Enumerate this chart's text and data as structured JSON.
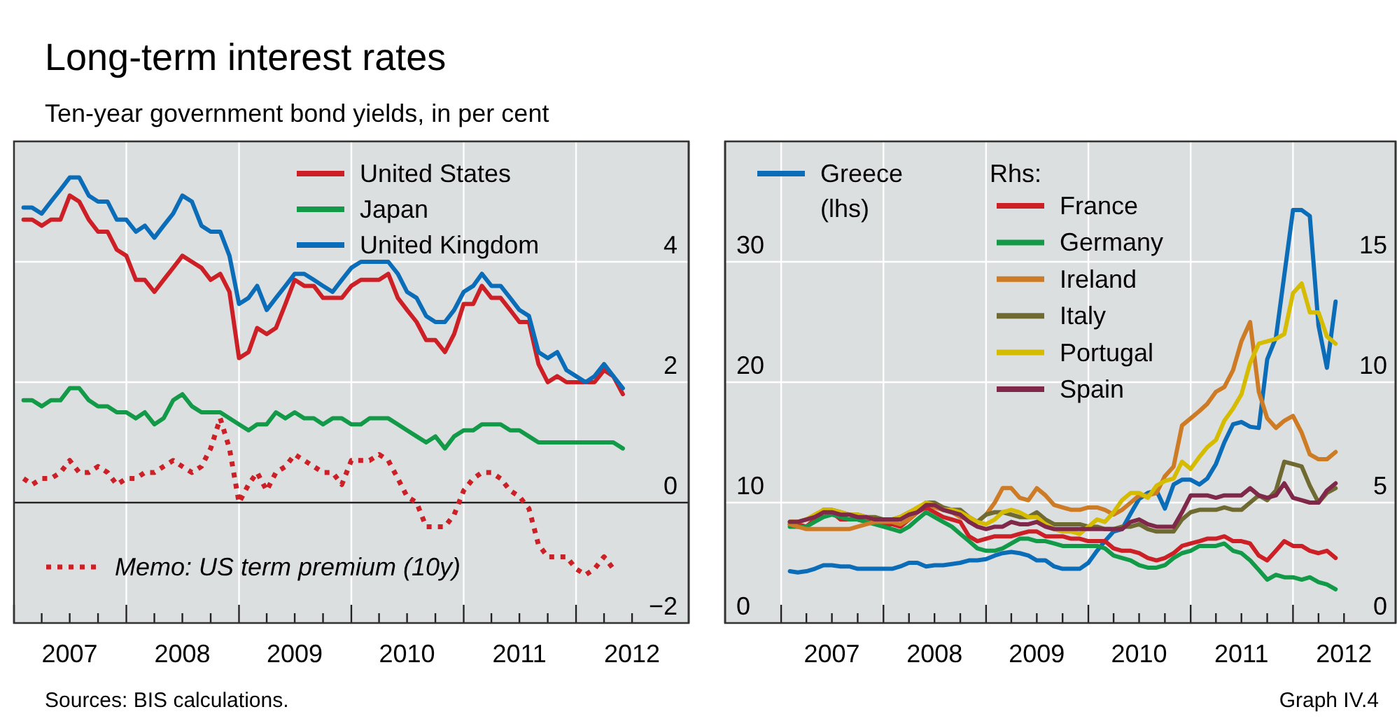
{
  "chart_data": [
    {
      "type": "line",
      "title": "Long-term interest rates",
      "subtitle": "Ten-year government bond yields, in per cent",
      "annotations": [
        "Sources: BIS calculations."
      ],
      "x": [
        "2007-02",
        "2007-03",
        "2007-04",
        "2007-05",
        "2007-06",
        "2007-07",
        "2007-08",
        "2007-09",
        "2007-10",
        "2007-11",
        "2007-12",
        "2008-01",
        "2008-02",
        "2008-03",
        "2008-04",
        "2008-05",
        "2008-06",
        "2008-07",
        "2008-08",
        "2008-09",
        "2008-10",
        "2008-11",
        "2008-12",
        "2009-01",
        "2009-02",
        "2009-03",
        "2009-04",
        "2009-05",
        "2009-06",
        "2009-07",
        "2009-08",
        "2009-09",
        "2009-10",
        "2009-11",
        "2009-12",
        "2010-01",
        "2010-02",
        "2010-03",
        "2010-04",
        "2010-05",
        "2010-06",
        "2010-07",
        "2010-08",
        "2010-09",
        "2010-10",
        "2010-11",
        "2010-12",
        "2011-01",
        "2011-02",
        "2011-03",
        "2011-04",
        "2011-05",
        "2011-06",
        "2011-07",
        "2011-08",
        "2011-09",
        "2011-10",
        "2011-11",
        "2011-12",
        "2012-01",
        "2012-02",
        "2012-03",
        "2012-04",
        "2012-05",
        "2012-06"
      ],
      "xlim": [
        "2007-01-01",
        "2013-01-01"
      ],
      "xticks": [
        {
          "value": "2007-01-01",
          "label": null
        },
        {
          "value": "2007-04-01",
          "label": null
        },
        {
          "value": "2007-07-01",
          "label": "2007"
        },
        {
          "value": "2007-10-01",
          "label": null
        },
        {
          "value": "2008-01-01",
          "label": null
        },
        {
          "value": "2008-04-01",
          "label": null
        },
        {
          "value": "2008-07-01",
          "label": "2008"
        },
        {
          "value": "2008-10-01",
          "label": null
        },
        {
          "value": "2009-01-01",
          "label": null
        },
        {
          "value": "2009-04-01",
          "label": null
        },
        {
          "value": "2009-07-01",
          "label": "2009"
        },
        {
          "value": "2009-10-01",
          "label": null
        },
        {
          "value": "2010-01-01",
          "label": null
        },
        {
          "value": "2010-04-01",
          "label": null
        },
        {
          "value": "2010-07-01",
          "label": "2010"
        },
        {
          "value": "2010-10-01",
          "label": null
        },
        {
          "value": "2011-01-01",
          "label": null
        },
        {
          "value": "2011-04-01",
          "label": null
        },
        {
          "value": "2011-07-01",
          "label": "2011"
        },
        {
          "value": "2011-10-01",
          "label": null
        },
        {
          "value": "2012-01-01",
          "label": null
        },
        {
          "value": "2012-04-01",
          "label": null
        },
        {
          "value": "2012-07-01",
          "label": "2012"
        }
      ],
      "ylim": [
        -2,
        6
      ],
      "yticks": [
        {
          "value": -2,
          "label": "−2"
        },
        0,
        2,
        4
      ],
      "grid": true,
      "legend": "top",
      "series": [
        {
          "name": "United States",
          "color": "#cc1f26",
          "values": [
            4.7,
            4.7,
            4.6,
            4.7,
            4.7,
            5.1,
            5.0,
            4.7,
            4.5,
            4.5,
            4.2,
            4.1,
            3.7,
            3.7,
            3.5,
            3.7,
            3.9,
            4.1,
            4.0,
            3.9,
            3.7,
            3.8,
            3.5,
            2.4,
            2.5,
            2.9,
            2.8,
            2.9,
            3.3,
            3.7,
            3.6,
            3.6,
            3.4,
            3.4,
            3.4,
            3.6,
            3.7,
            3.7,
            3.7,
            3.8,
            3.4,
            3.2,
            3.0,
            2.7,
            2.7,
            2.5,
            2.8,
            3.3,
            3.3,
            3.6,
            3.4,
            3.4,
            3.2,
            3.0,
            3.0,
            2.3,
            2.0,
            2.1,
            2.0,
            2.0,
            2.0,
            2.0,
            2.2,
            2.1,
            1.8
          ]
        },
        {
          "name": "Japan",
          "color": "#129a48",
          "values": [
            1.7,
            1.7,
            1.6,
            1.7,
            1.7,
            1.9,
            1.9,
            1.7,
            1.6,
            1.6,
            1.5,
            1.5,
            1.4,
            1.5,
            1.3,
            1.4,
            1.7,
            1.8,
            1.6,
            1.5,
            1.5,
            1.5,
            1.4,
            1.3,
            1.2,
            1.3,
            1.3,
            1.5,
            1.4,
            1.5,
            1.4,
            1.4,
            1.3,
            1.4,
            1.4,
            1.3,
            1.3,
            1.4,
            1.4,
            1.4,
            1.3,
            1.2,
            1.1,
            1.0,
            1.1,
            0.9,
            1.1,
            1.2,
            1.2,
            1.3,
            1.3,
            1.3,
            1.2,
            1.2,
            1.1,
            1.0,
            1.0,
            1.0,
            1.0,
            1.0,
            1.0,
            1.0,
            1.0,
            1.0,
            0.9
          ]
        },
        {
          "name": "United Kingdom",
          "color": "#0b6cb8",
          "values": [
            4.9,
            4.9,
            4.8,
            5.0,
            5.2,
            5.4,
            5.4,
            5.1,
            5.0,
            5.0,
            4.7,
            4.7,
            4.5,
            4.6,
            4.4,
            4.6,
            4.8,
            5.1,
            5.0,
            4.6,
            4.5,
            4.5,
            4.1,
            3.3,
            3.4,
            3.6,
            3.2,
            3.4,
            3.6,
            3.8,
            3.8,
            3.7,
            3.6,
            3.5,
            3.7,
            3.9,
            4.0,
            4.0,
            4.0,
            4.0,
            3.8,
            3.5,
            3.4,
            3.1,
            3.0,
            3.0,
            3.2,
            3.5,
            3.6,
            3.8,
            3.6,
            3.6,
            3.4,
            3.2,
            3.1,
            2.5,
            2.4,
            2.5,
            2.2,
            2.1,
            2.0,
            2.1,
            2.3,
            2.1,
            1.9
          ]
        },
        {
          "name": "Memo: US term premium (10y)",
          "color": "#cc1f26",
          "line_style": "dotted",
          "values": [
            0.4,
            0.3,
            0.4,
            0.4,
            0.5,
            0.7,
            0.5,
            0.5,
            0.6,
            0.5,
            0.3,
            0.4,
            0.4,
            0.5,
            0.5,
            0.6,
            0.7,
            0.6,
            0.5,
            0.6,
            0.9,
            1.4,
            0.9,
            0.0,
            0.3,
            0.5,
            0.2,
            0.5,
            0.6,
            0.8,
            0.7,
            0.6,
            0.5,
            0.5,
            0.3,
            0.7,
            0.7,
            0.7,
            0.8,
            0.7,
            0.4,
            0.1,
            0.0,
            -0.4,
            -0.4,
            -0.4,
            -0.2,
            0.2,
            0.4,
            0.5,
            0.5,
            0.4,
            0.2,
            0.1,
            -0.1,
            -0.7,
            -0.9,
            -0.9,
            -0.9,
            -1.1,
            -1.2,
            -1.1,
            -0.9,
            -1.1,
            null
          ]
        }
      ]
    },
    {
      "type": "line",
      "annotations": [
        "Graph IV.4"
      ],
      "x": [
        "2007-02",
        "2007-03",
        "2007-04",
        "2007-05",
        "2007-06",
        "2007-07",
        "2007-08",
        "2007-09",
        "2007-10",
        "2007-11",
        "2007-12",
        "2008-01",
        "2008-02",
        "2008-03",
        "2008-04",
        "2008-05",
        "2008-06",
        "2008-07",
        "2008-08",
        "2008-09",
        "2008-10",
        "2008-11",
        "2008-12",
        "2009-01",
        "2009-02",
        "2009-03",
        "2009-04",
        "2009-05",
        "2009-06",
        "2009-07",
        "2009-08",
        "2009-09",
        "2009-10",
        "2009-11",
        "2009-12",
        "2010-01",
        "2010-02",
        "2010-03",
        "2010-04",
        "2010-05",
        "2010-06",
        "2010-07",
        "2010-08",
        "2010-09",
        "2010-10",
        "2010-11",
        "2010-12",
        "2011-01",
        "2011-02",
        "2011-03",
        "2011-04",
        "2011-05",
        "2011-06",
        "2011-07",
        "2011-08",
        "2011-09",
        "2011-10",
        "2011-11",
        "2011-12",
        "2012-01",
        "2012-02",
        "2012-03",
        "2012-04",
        "2012-05",
        "2012-06"
      ],
      "xlim": [
        "2006-06-15",
        "2013-01-01"
      ],
      "xticks": [
        {
          "value": "2007-01-01",
          "label": null
        },
        {
          "value": "2007-04-01",
          "label": null
        },
        {
          "value": "2007-07-01",
          "label": "2007"
        },
        {
          "value": "2007-10-01",
          "label": null
        },
        {
          "value": "2008-01-01",
          "label": null
        },
        {
          "value": "2008-04-01",
          "label": null
        },
        {
          "value": "2008-07-01",
          "label": "2008"
        },
        {
          "value": "2008-10-01",
          "label": null
        },
        {
          "value": "2009-01-01",
          "label": null
        },
        {
          "value": "2009-04-01",
          "label": null
        },
        {
          "value": "2009-07-01",
          "label": "2009"
        },
        {
          "value": "2009-10-01",
          "label": null
        },
        {
          "value": "2010-01-01",
          "label": null
        },
        {
          "value": "2010-04-01",
          "label": null
        },
        {
          "value": "2010-07-01",
          "label": "2010"
        },
        {
          "value": "2010-10-01",
          "label": null
        },
        {
          "value": "2011-01-01",
          "label": null
        },
        {
          "value": "2011-04-01",
          "label": null
        },
        {
          "value": "2011-07-01",
          "label": "2011"
        },
        {
          "value": "2011-10-01",
          "label": null
        },
        {
          "value": "2012-01-01",
          "label": null
        },
        {
          "value": "2012-04-01",
          "label": null
        },
        {
          "value": "2012-07-01",
          "label": "2012"
        }
      ],
      "ylim": [
        0,
        40
      ],
      "yticks": [
        0,
        10,
        20,
        30
      ],
      "y2lim": [
        0,
        20
      ],
      "y2ticks": [
        0,
        5,
        10,
        15
      ],
      "grid": true,
      "legend": "top",
      "legend_title": "Rhs:",
      "series": [
        {
          "name": "Greece (lhs)",
          "color": "#0b6cb8",
          "values": [
            4.3,
            4.2,
            4.3,
            4.5,
            4.8,
            4.8,
            4.7,
            4.7,
            4.5,
            4.5,
            4.5,
            4.5,
            4.5,
            4.7,
            5.0,
            5.0,
            4.7,
            4.8,
            4.8,
            4.9,
            5.0,
            5.2,
            5.2,
            5.3,
            5.6,
            5.8,
            5.9,
            5.8,
            5.6,
            5.2,
            5.2,
            4.7,
            4.5,
            4.5,
            4.5,
            5.0,
            6.0,
            6.8,
            7.6,
            7.8,
            9.1,
            10.3,
            10.8,
            11.0,
            9.5,
            11.5,
            11.9,
            11.9,
            11.5,
            12.0,
            13.2,
            15.0,
            16.5,
            16.7,
            16.3,
            16.2,
            21.9,
            23.7,
            28.9,
            34.3,
            34.3,
            33.8,
            24.7,
            21.2,
            26.7
          ]
        },
        {
          "name": "France",
          "color": "#cc1f26",
          "axis": "y2",
          "values": [
            4.1,
            4.1,
            4.0,
            4.3,
            4.6,
            4.6,
            4.3,
            4.3,
            4.3,
            4.2,
            4.3,
            4.1,
            4.1,
            4.0,
            4.3,
            4.6,
            4.8,
            4.6,
            4.4,
            4.3,
            4.2,
            3.6,
            3.4,
            3.5,
            3.6,
            3.6,
            3.6,
            3.7,
            3.8,
            3.8,
            3.6,
            3.6,
            3.6,
            3.5,
            3.5,
            3.4,
            3.4,
            3.4,
            3.1,
            3.0,
            3.0,
            2.9,
            2.7,
            2.6,
            2.7,
            2.9,
            3.2,
            3.3,
            3.4,
            3.5,
            3.5,
            3.6,
            3.4,
            3.4,
            3.3,
            2.8,
            2.6,
            3.0,
            3.4,
            3.2,
            3.2,
            3.0,
            2.9,
            3.0,
            2.7
          ]
        },
        {
          "name": "Germany",
          "color": "#129a48",
          "axis": "y2",
          "values": [
            4.0,
            4.0,
            4.0,
            4.2,
            4.4,
            4.5,
            4.4,
            4.3,
            4.3,
            4.2,
            4.1,
            4.0,
            3.9,
            3.8,
            4.0,
            4.3,
            4.6,
            4.4,
            4.2,
            4.0,
            3.7,
            3.4,
            3.1,
            3.0,
            3.0,
            3.1,
            3.3,
            3.5,
            3.5,
            3.4,
            3.4,
            3.3,
            3.2,
            3.2,
            3.2,
            3.2,
            3.2,
            3.1,
            2.8,
            2.7,
            2.6,
            2.4,
            2.3,
            2.3,
            2.4,
            2.7,
            2.9,
            3.0,
            3.2,
            3.2,
            3.2,
            3.3,
            3.0,
            2.9,
            2.6,
            2.2,
            1.8,
            2.0,
            1.9,
            1.9,
            1.8,
            1.9,
            1.7,
            1.6,
            1.4
          ]
        },
        {
          "name": "Ireland",
          "color": "#cd7b25",
          "axis": "y2",
          "values": [
            4.1,
            4.0,
            3.9,
            3.9,
            3.9,
            3.9,
            3.9,
            3.9,
            4.0,
            4.1,
            4.2,
            4.2,
            4.2,
            4.1,
            4.3,
            4.6,
            5.0,
            4.8,
            4.7,
            4.6,
            4.4,
            4.3,
            4.2,
            4.5,
            5.0,
            5.6,
            5.6,
            5.2,
            5.1,
            5.6,
            5.3,
            4.9,
            4.8,
            4.7,
            4.7,
            4.8,
            4.8,
            4.7,
            4.5,
            4.7,
            5.0,
            5.3,
            5.3,
            5.4,
            6.1,
            6.5,
            8.2,
            8.5,
            8.8,
            9.1,
            9.6,
            9.8,
            10.5,
            11.7,
            12.5,
            9.6,
            8.5,
            8.1,
            8.4,
            8.6,
            7.9,
            7.0,
            6.8,
            6.8,
            7.1
          ]
        },
        {
          "name": "Italy",
          "color": "#6e6a32",
          "axis": "y2",
          "values": [
            4.2,
            4.2,
            4.3,
            4.4,
            4.7,
            4.7,
            4.6,
            4.5,
            4.5,
            4.4,
            4.4,
            4.3,
            4.3,
            4.4,
            4.6,
            4.7,
            5.0,
            5.0,
            4.8,
            4.7,
            4.7,
            4.4,
            4.2,
            4.5,
            4.6,
            4.6,
            4.5,
            4.4,
            4.4,
            4.6,
            4.3,
            4.1,
            4.1,
            4.1,
            4.1,
            4.0,
            4.0,
            3.9,
            3.9,
            4.0,
            4.0,
            4.1,
            3.9,
            3.8,
            3.8,
            3.8,
            4.3,
            4.6,
            4.7,
            4.7,
            4.7,
            4.8,
            4.7,
            4.7,
            5.0,
            5.3,
            5.1,
            5.5,
            6.7,
            6.6,
            6.5,
            5.7,
            5.0,
            5.4,
            5.6
          ]
        },
        {
          "name": "Portugal",
          "color": "#d6bc00",
          "axis": "y2",
          "values": [
            4.2,
            4.2,
            4.3,
            4.5,
            4.7,
            4.7,
            4.6,
            4.5,
            4.5,
            4.4,
            4.3,
            4.3,
            4.3,
            4.4,
            4.6,
            4.8,
            5.0,
            4.9,
            4.7,
            4.7,
            4.6,
            4.4,
            4.2,
            4.1,
            4.3,
            4.6,
            4.7,
            4.6,
            4.4,
            4.4,
            4.1,
            3.9,
            3.8,
            3.8,
            3.7,
            4.0,
            4.3,
            4.2,
            4.6,
            5.1,
            5.4,
            5.4,
            5.2,
            5.7,
            5.9,
            6.0,
            6.7,
            6.4,
            6.9,
            7.3,
            7.6,
            8.4,
            8.9,
            9.5,
            10.8,
            11.6,
            11.7,
            11.8,
            12.0,
            13.7,
            14.1,
            12.9,
            12.9,
            11.9,
            11.6
          ]
        },
        {
          "name": "Spain",
          "color": "#80284a",
          "axis": "y2",
          "values": [
            4.2,
            4.2,
            4.3,
            4.4,
            4.6,
            4.6,
            4.5,
            4.5,
            4.4,
            4.4,
            4.3,
            4.3,
            4.3,
            4.3,
            4.5,
            4.6,
            4.9,
            4.9,
            4.7,
            4.6,
            4.5,
            4.2,
            4.0,
            3.9,
            4.0,
            4.0,
            4.2,
            4.1,
            4.1,
            4.2,
            4.0,
            3.9,
            3.9,
            3.9,
            3.9,
            3.9,
            3.9,
            3.9,
            3.9,
            3.9,
            4.2,
            4.3,
            4.1,
            4.0,
            4.0,
            4.0,
            4.6,
            5.3,
            5.3,
            5.3,
            5.2,
            5.3,
            5.3,
            5.3,
            5.6,
            5.3,
            5.2,
            5.3,
            5.8,
            5.2,
            5.1,
            5.0,
            5.0,
            5.5,
            5.8
          ]
        }
      ]
    }
  ]
}
